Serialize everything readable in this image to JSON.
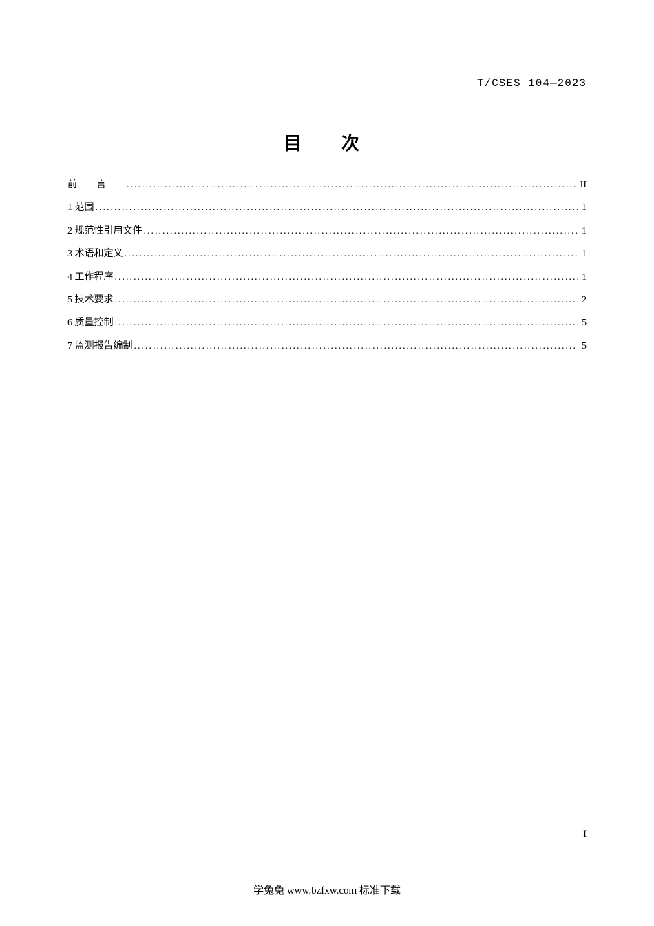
{
  "header": {
    "code": "T/CSES 104—2023"
  },
  "title": "目　次",
  "toc": {
    "entries": [
      {
        "label": "前言",
        "page": "II",
        "is_preface": true
      },
      {
        "label": "1 范围",
        "page": "1",
        "is_preface": false
      },
      {
        "label": "2 规范性引用文件",
        "page": "1",
        "is_preface": false
      },
      {
        "label": "3 术语和定义",
        "page": "1",
        "is_preface": false
      },
      {
        "label": "4 工作程序",
        "page": "1",
        "is_preface": false
      },
      {
        "label": "5 技术要求",
        "page": "2",
        "is_preface": false
      },
      {
        "label": "6 质量控制",
        "page": "5",
        "is_preface": false
      },
      {
        "label": "7 监测报告编制",
        "page": "5",
        "is_preface": false
      }
    ]
  },
  "page_number": "I",
  "footer": "学兔兔 www.bzfxw.com 标准下载"
}
